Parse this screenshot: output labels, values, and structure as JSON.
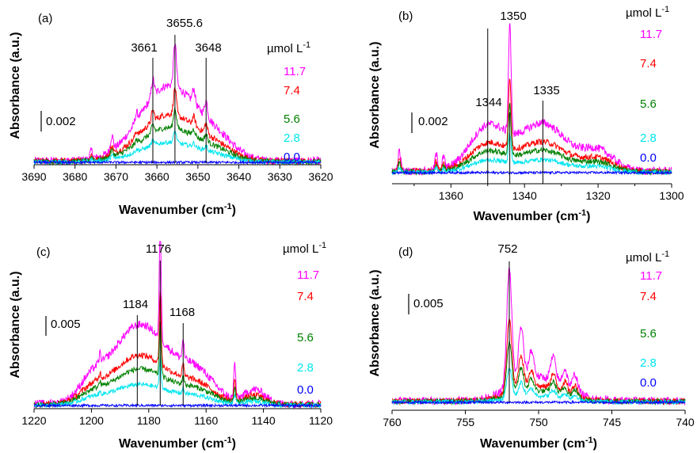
{
  "colors": {
    "c11_7": "#ff00ff",
    "c7_4": "#ff0000",
    "c5_6": "#008000",
    "c2_8": "#00e5ee",
    "c0_0": "#0000ff"
  },
  "chart_data": [
    {
      "type": "line",
      "panel": "(a)",
      "xlabel": "Wavenumber (cm",
      "xlabel_sup": "-1",
      "xlabel_end": ")",
      "ylabel": "Absorbance (a.u.)",
      "xlim": [
        3690,
        3620
      ],
      "xticks": [
        3690,
        3680,
        3670,
        3660,
        3650,
        3640,
        3630,
        3620
      ],
      "scale_bar": "0.002",
      "legend_title": "µmol L",
      "legend_title_sup": "-1",
      "peaks": [
        {
          "x": 3661,
          "label": "3661"
        },
        {
          "x": 3655.6,
          "label": "3655.6"
        },
        {
          "x": 3648,
          "label": "3648"
        }
      ],
      "series": [
        {
          "name": "11.7",
          "values": []
        },
        {
          "name": "7.4",
          "values": []
        },
        {
          "name": "5.6",
          "values": []
        },
        {
          "name": "2.8",
          "values": []
        },
        {
          "name": "0.0",
          "values": []
        }
      ]
    },
    {
      "type": "line",
      "panel": "(b)",
      "xlabel": "Wavenumber (cm",
      "xlabel_sup": "-1",
      "xlabel_end": ")",
      "ylabel": "Absorbance (a.u.)",
      "xlim": [
        1376,
        1300
      ],
      "xticks": [
        1360,
        1340,
        1320,
        1300
      ],
      "scale_bar": "0.002",
      "legend_title": "µmol L",
      "legend_title_sup": "-1",
      "peaks": [
        {
          "x": 1350,
          "label": "1350"
        },
        {
          "x": 1344,
          "label": "1344"
        },
        {
          "x": 1335,
          "label": "1335"
        }
      ],
      "series": [
        {
          "name": "11.7",
          "values": []
        },
        {
          "name": "7.4",
          "values": []
        },
        {
          "name": "5.6",
          "values": []
        },
        {
          "name": "2.8",
          "values": []
        },
        {
          "name": "0.0",
          "values": []
        }
      ]
    },
    {
      "type": "line",
      "panel": "(c)",
      "xlabel": "Wavenumber (cm",
      "xlabel_sup": "-1",
      "xlabel_end": ")",
      "ylabel": "Absorbance (a.u.)",
      "xlim": [
        1220,
        1120
      ],
      "xticks": [
        1220,
        1200,
        1180,
        1160,
        1140,
        1120
      ],
      "scale_bar": "0.005",
      "legend_title": "µmol L",
      "legend_title_sup": "-1",
      "peaks": [
        {
          "x": 1184,
          "label": "1184"
        },
        {
          "x": 1176,
          "label": "1176"
        },
        {
          "x": 1168,
          "label": "1168"
        }
      ],
      "series": [
        {
          "name": "11.7",
          "values": []
        },
        {
          "name": "7.4",
          "values": []
        },
        {
          "name": "5.6",
          "values": []
        },
        {
          "name": "2.8",
          "values": []
        },
        {
          "name": "0.0",
          "values": []
        }
      ]
    },
    {
      "type": "line",
      "panel": "(d)",
      "xlabel": "Wavenumber (cm",
      "xlabel_sup": "-1",
      "xlabel_end": ")",
      "ylabel": "Absorbance (a.u.)",
      "xlim": [
        760,
        740
      ],
      "xticks": [
        760,
        755,
        750,
        745,
        740
      ],
      "scale_bar": "0.005",
      "legend_title": "µmol L",
      "legend_title_sup": "-1",
      "peaks": [
        {
          "x": 752,
          "label": "752"
        }
      ],
      "series": [
        {
          "name": "11.7",
          "values": []
        },
        {
          "name": "7.4",
          "values": []
        },
        {
          "name": "5.6",
          "values": []
        },
        {
          "name": "2.8",
          "values": []
        },
        {
          "name": "0.0",
          "values": []
        }
      ]
    }
  ]
}
